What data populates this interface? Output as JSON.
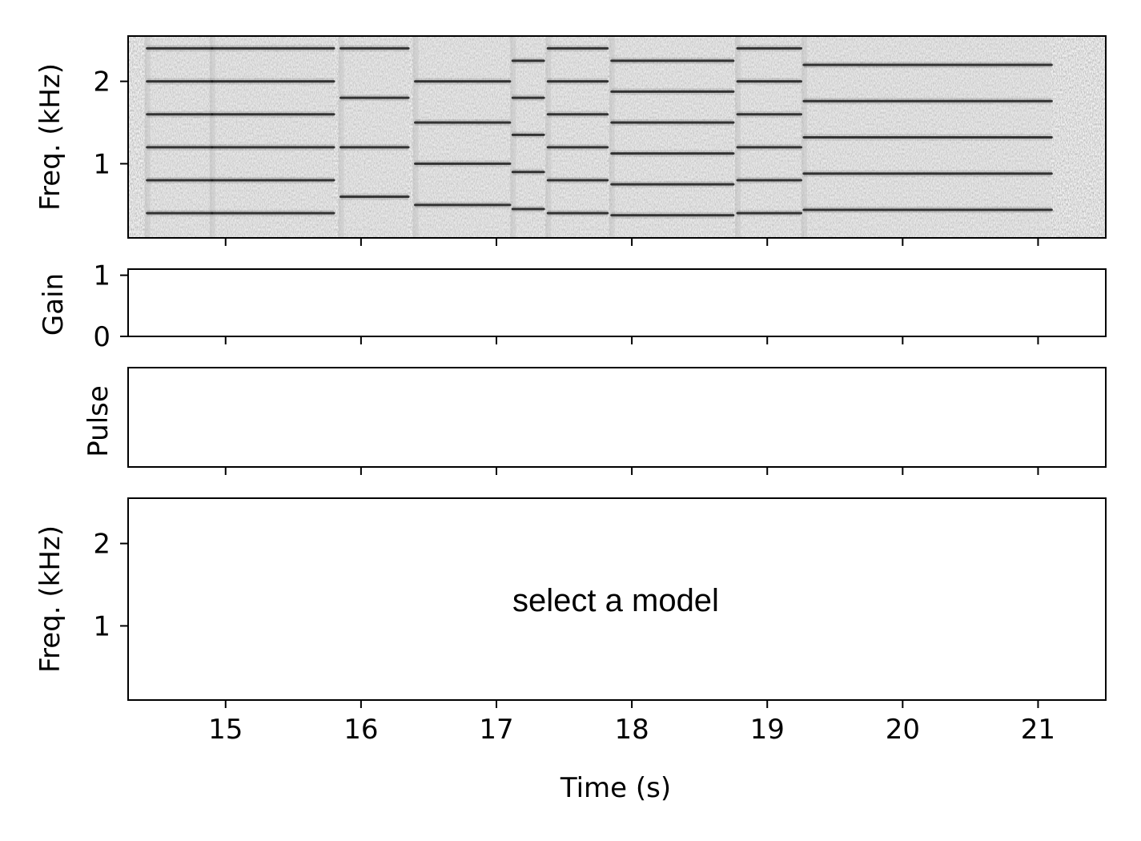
{
  "chart_data": {
    "type": "figure",
    "x": {
      "label": "Time (s)",
      "range": [
        14.28,
        21.5
      ],
      "ticks": [
        15,
        16,
        17,
        18,
        19,
        20,
        21
      ],
      "tick_labels": [
        "15",
        "16",
        "17",
        "18",
        "19",
        "20",
        "21"
      ]
    },
    "panels": [
      {
        "name": "input-spectrogram",
        "type": "heatmap",
        "ylabel": "Freq. (kHz)",
        "ylim": [
          0.1,
          2.55
        ],
        "yticks": [
          1,
          2
        ],
        "ytick_labels": [
          "1",
          "2"
        ],
        "colormap": "gray_r",
        "background_color": "#f2f2f2",
        "line_color": "#1a1a1a",
        "segments": [
          {
            "t": [
              14.42,
              14.9
            ],
            "f0": 0.4,
            "harmonics": 6
          },
          {
            "t": [
              14.9,
              15.8
            ],
            "f0": 0.4,
            "harmonics": 6
          },
          {
            "t": [
              15.85,
              16.35
            ],
            "f0": 0.6,
            "harmonics": 4
          },
          {
            "t": [
              16.4,
              17.1
            ],
            "f0": 0.5,
            "harmonics": 4
          },
          {
            "t": [
              17.12,
              17.35
            ],
            "f0": 0.45,
            "harmonics": 5
          },
          {
            "t": [
              17.38,
              17.82
            ],
            "f0": 0.4,
            "harmonics": 6
          },
          {
            "t": [
              17.85,
              18.75
            ],
            "f0": 0.375,
            "harmonics": 6
          },
          {
            "t": [
              18.78,
              19.25
            ],
            "f0": 0.4,
            "harmonics": 6
          },
          {
            "t": [
              19.27,
              21.1
            ],
            "f0": 0.44,
            "harmonics": 5
          }
        ]
      },
      {
        "name": "gain",
        "type": "line",
        "ylabel": "Gain",
        "ylim": [
          0,
          1.1
        ],
        "yticks": [
          0,
          1
        ],
        "ytick_labels": [
          "0",
          "1"
        ]
      },
      {
        "name": "pulse",
        "type": "line",
        "ylabel": "Pulse",
        "ylim": [
          0,
          1
        ],
        "yticks": [],
        "ytick_labels": []
      },
      {
        "name": "output-spectrogram",
        "type": "heatmap",
        "ylabel": "Freq. (kHz)",
        "ylim": [
          0.1,
          2.55
        ],
        "yticks": [
          1,
          2
        ],
        "ytick_labels": [
          "1",
          "2"
        ],
        "message": "select a model"
      }
    ]
  }
}
